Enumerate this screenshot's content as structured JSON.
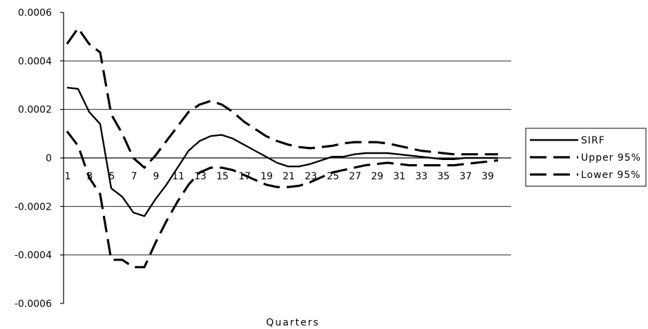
{
  "chart_data": {
    "type": "line",
    "title": "",
    "xlabel": "Quarters",
    "ylabel": "",
    "ylim": [
      -0.0006,
      0.0006
    ],
    "yticks": [
      {
        "value": 0.0006,
        "label": "0.0006"
      },
      {
        "value": 0.0004,
        "label": "0.0004"
      },
      {
        "value": 0.0002,
        "label": "0.0002"
      },
      {
        "value": 0,
        "label": "0"
      },
      {
        "value": -0.0002,
        "label": "-0.0002"
      },
      {
        "value": -0.0004,
        "label": "-0.0004"
      },
      {
        "value": -0.0006,
        "label": "-0.0006"
      }
    ],
    "xtick_labels": [
      "1",
      "3",
      "5",
      "7",
      "9",
      "11",
      "13",
      "15",
      "17",
      "19",
      "21",
      "23",
      "25",
      "27",
      "29",
      "31",
      "33",
      "35",
      "37",
      "39"
    ],
    "grid": "horizontal",
    "legend_position": "right",
    "x": [
      1,
      2,
      3,
      4,
      5,
      6,
      7,
      8,
      9,
      10,
      11,
      12,
      13,
      14,
      15,
      16,
      17,
      18,
      19,
      20,
      21,
      22,
      23,
      24,
      25,
      26,
      27,
      28,
      29,
      30,
      31,
      32,
      33,
      34,
      35,
      36,
      37,
      38,
      39,
      40
    ],
    "series": [
      {
        "name": "SIRF",
        "style": "solid",
        "values": [
          0.00029,
          0.000285,
          0.00019,
          0.00014,
          -0.000125,
          -0.00016,
          -0.000225,
          -0.00024,
          -0.00017,
          -0.00011,
          -4e-05,
          3e-05,
          7e-05,
          9e-05,
          9.5e-05,
          8e-05,
          5.5e-05,
          3e-05,
          5e-06,
          -2e-05,
          -3.5e-05,
          -3.5e-05,
          -2.5e-05,
          -1e-05,
          5e-06,
          5e-06,
          1.5e-05,
          2e-05,
          2e-05,
          2e-05,
          1.5e-05,
          1e-05,
          5e-06,
          0,
          -5e-06,
          -5e-06,
          0,
          0,
          0,
          0
        ]
      },
      {
        "name": "Upper 95%",
        "style": "dashed",
        "values": [
          0.00047,
          0.000535,
          0.00047,
          0.000435,
          0.00018,
          0.0001,
          0,
          -4e-05,
          1e-05,
          7e-05,
          0.00013,
          0.00019,
          0.00022,
          0.000235,
          0.00022,
          0.00019,
          0.00015,
          0.00012,
          9e-05,
          7e-05,
          5.5e-05,
          4.5e-05,
          4e-05,
          4.5e-05,
          5e-05,
          6e-05,
          6.5e-05,
          6.5e-05,
          6.5e-05,
          6e-05,
          5e-05,
          4e-05,
          3e-05,
          2.5e-05,
          2e-05,
          1.5e-05,
          1.5e-05,
          1.5e-05,
          1.5e-05,
          1.5e-05
        ]
      },
      {
        "name": "Lower 95%",
        "style": "dashed",
        "values": [
          0.00011,
          5e-05,
          -8e-05,
          -0.00015,
          -0.00042,
          -0.00042,
          -0.00045,
          -0.00045,
          -0.00035,
          -0.00026,
          -0.00018,
          -0.00011,
          -6e-05,
          -4e-05,
          -4e-05,
          -5e-05,
          -7e-05,
          -9e-05,
          -0.00011,
          -0.00012,
          -0.00012,
          -0.000115,
          -0.0001,
          -8e-05,
          -6e-05,
          -5e-05,
          -4e-05,
          -3e-05,
          -2.5e-05,
          -2e-05,
          -2.5e-05,
          -3e-05,
          -3e-05,
          -3e-05,
          -3e-05,
          -3e-05,
          -2.5e-05,
          -2e-05,
          -1.5e-05,
          -1e-05
        ]
      }
    ]
  }
}
